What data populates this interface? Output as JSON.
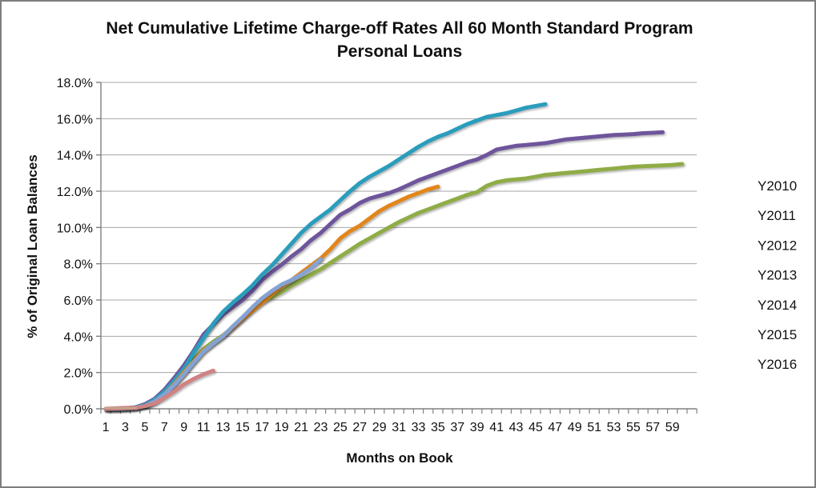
{
  "window": {
    "background": "#ffffff",
    "border_color": "#7f7f7f"
  },
  "title": {
    "line1": "Net Cumulative Lifetime Charge-off Rates All 60 Month Standard Program",
    "line2": "Personal Loans"
  },
  "chart_data": {
    "type": "line",
    "title": "Net Cumulative Lifetime Charge-off Rates All 60 Month Standard Program Personal Loans",
    "xlabel": "Months on Book",
    "ylabel": "% of Original Loan Balances",
    "xlim": [
      0,
      61
    ],
    "ylim": [
      0,
      18
    ],
    "grid": "horizontal-only",
    "grid_color": "#a6a6a6",
    "axis_color": "#808080",
    "legend_position": "right",
    "x_tick_labels": [
      1,
      3,
      5,
      7,
      9,
      11,
      13,
      15,
      17,
      19,
      21,
      23,
      25,
      27,
      29,
      31,
      33,
      35,
      37,
      39,
      41,
      43,
      45,
      47,
      49,
      51,
      53,
      55,
      57,
      59
    ],
    "y_tick_labels": [
      "0.0%",
      "2.0%",
      "4.0%",
      "6.0%",
      "8.0%",
      "10.0%",
      "12.0%",
      "14.0%",
      "16.0%",
      "18.0%"
    ],
    "y_tick_values": [
      0,
      2,
      4,
      6,
      8,
      10,
      12,
      14,
      16,
      18
    ],
    "x_unit": "months, data plotted monthly starting at month 1",
    "y_unit": "percent of original loan balances",
    "series": [
      {
        "name": "Y2010",
        "color": "#8fac46",
        "start_month": 1,
        "values": [
          0.0,
          0.0,
          0.02,
          0.05,
          0.2,
          0.45,
          0.85,
          1.4,
          2.0,
          2.7,
          3.3,
          3.7,
          4.05,
          4.5,
          5.0,
          5.5,
          5.9,
          6.15,
          6.45,
          6.8,
          7.1,
          7.4,
          7.7,
          8.05,
          8.4,
          8.75,
          9.1,
          9.4,
          9.7,
          10.0,
          10.3,
          10.55,
          10.8,
          11.0,
          11.2,
          11.4,
          11.6,
          11.8,
          11.95,
          12.3,
          12.5,
          12.6,
          12.65,
          12.7,
          12.8,
          12.9,
          12.95,
          13.0,
          13.05,
          13.1,
          13.15,
          13.2,
          13.25,
          13.3,
          13.35,
          13.38,
          13.4,
          13.42,
          13.45,
          13.5
        ]
      },
      {
        "name": "Y2011",
        "color": "#6e549b",
        "start_month": 1,
        "values": [
          0.0,
          0.0,
          0.02,
          0.08,
          0.25,
          0.55,
          1.05,
          1.7,
          2.4,
          3.2,
          4.1,
          4.65,
          5.2,
          5.6,
          6.0,
          6.5,
          7.1,
          7.55,
          7.95,
          8.4,
          8.8,
          9.3,
          9.7,
          10.2,
          10.7,
          11.0,
          11.35,
          11.6,
          11.75,
          11.9,
          12.1,
          12.35,
          12.6,
          12.8,
          13.0,
          13.2,
          13.4,
          13.6,
          13.75,
          14.0,
          14.3,
          14.4,
          14.5,
          14.55,
          14.6,
          14.65,
          14.75,
          14.85,
          14.9,
          14.95,
          15.0,
          15.05,
          15.1,
          15.12,
          15.15,
          15.2,
          15.22,
          15.25
        ]
      },
      {
        "name": "Y2012",
        "color": "#2a9dbc",
        "start_month": 1,
        "values": [
          0.0,
          0.0,
          0.02,
          0.08,
          0.2,
          0.5,
          0.95,
          1.55,
          2.2,
          3.1,
          3.9,
          4.7,
          5.35,
          5.85,
          6.3,
          6.8,
          7.4,
          7.9,
          8.5,
          9.1,
          9.7,
          10.2,
          10.6,
          11.0,
          11.5,
          12.0,
          12.45,
          12.8,
          13.1,
          13.4,
          13.75,
          14.1,
          14.45,
          14.75,
          15.0,
          15.2,
          15.45,
          15.7,
          15.9,
          16.1,
          16.2,
          16.3,
          16.45,
          16.6,
          16.7,
          16.8
        ]
      },
      {
        "name": "Y2013",
        "color": "#e2861f",
        "start_month": 1,
        "values": [
          0.0,
          0.0,
          0.02,
          0.05,
          0.15,
          0.4,
          0.8,
          1.35,
          2.0,
          2.6,
          3.2,
          3.6,
          4.0,
          4.5,
          4.95,
          5.4,
          5.85,
          6.3,
          6.75,
          7.1,
          7.5,
          7.9,
          8.3,
          8.8,
          9.4,
          9.8,
          10.1,
          10.5,
          10.9,
          11.2,
          11.45,
          11.7,
          11.9,
          12.1,
          12.25
        ]
      },
      {
        "name": "Y2014",
        "color": "#84a3d4",
        "start_month": 1,
        "values": [
          0.0,
          0.0,
          0.02,
          0.05,
          0.15,
          0.4,
          0.8,
          1.3,
          1.9,
          2.55,
          3.15,
          3.6,
          4.0,
          4.55,
          5.05,
          5.6,
          6.1,
          6.5,
          6.85,
          7.1,
          7.4,
          7.75,
          8.25
        ]
      },
      {
        "name": "Y2015",
        "color": "#d08284",
        "start_month": 1,
        "values": [
          0.0,
          0.02,
          0.05,
          0.05,
          0.15,
          0.3,
          0.6,
          0.95,
          1.35,
          1.65,
          1.9,
          2.1
        ]
      },
      {
        "name": "Y2016",
        "color": "#b3cd8e",
        "start_month": 1,
        "values": [
          0.03,
          0.03,
          0.03,
          0.05
        ]
      }
    ]
  }
}
